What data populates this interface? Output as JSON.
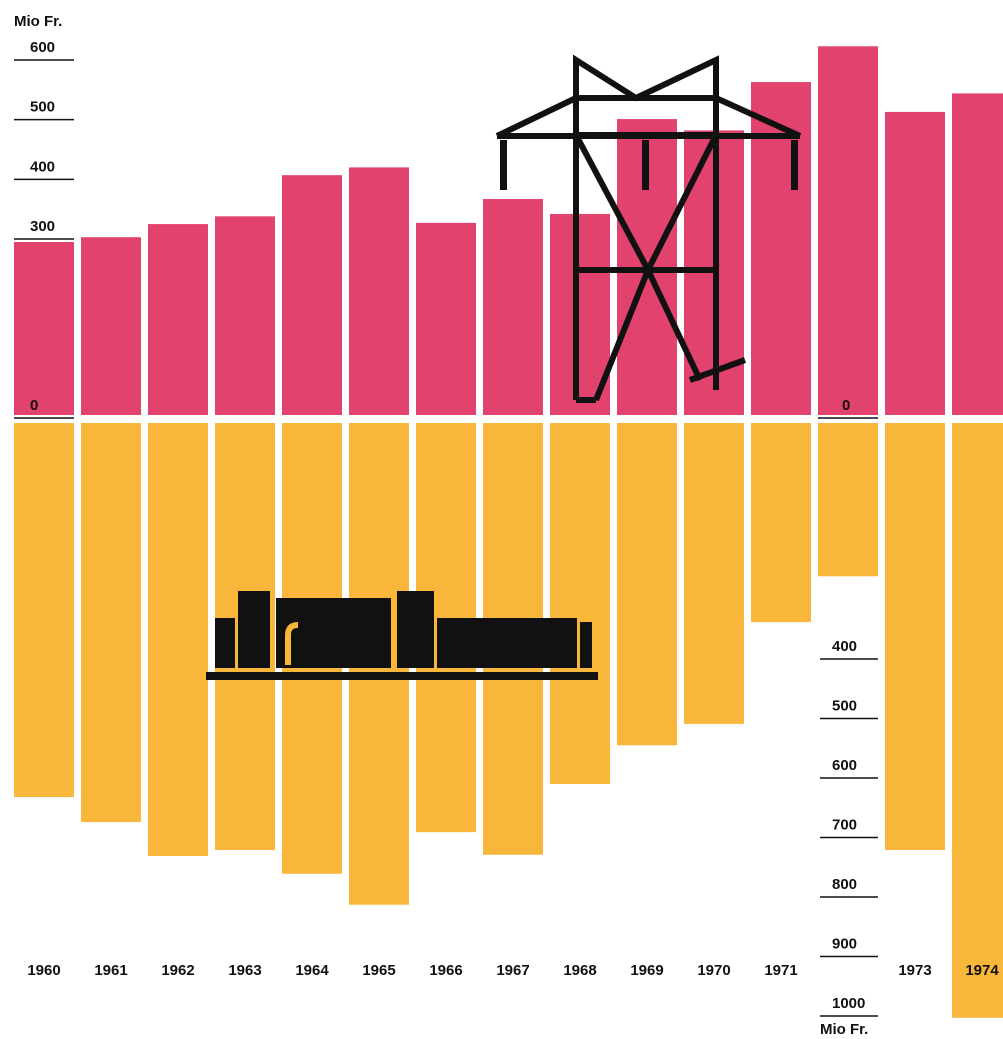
{
  "chart_data": {
    "type": "bar",
    "y_label": "Mio Fr.",
    "y2_label": "Mio Fr.",
    "categories": [
      "1960",
      "1961",
      "1962",
      "1963",
      "1964",
      "1965",
      "1966",
      "1967",
      "1968",
      "1969",
      "1970",
      "1971",
      null,
      "1973",
      "1974"
    ],
    "series": [
      {
        "color": "#e2426e",
        "values": [
          295,
          303,
          325,
          338,
          407,
          420,
          327,
          367,
          342,
          501,
          482,
          563,
          623,
          513,
          544
        ]
      },
      {
        "color": "#f8b63a",
        "axis": "y2",
        "values": [
          632,
          674,
          731,
          721,
          761,
          813,
          691,
          729,
          610,
          545,
          509,
          338,
          261,
          721,
          1003
        ]
      }
    ],
    "ylim": [
      0,
      600
    ],
    "yticks": [
      0,
      300,
      400,
      500,
      600
    ],
    "y2lim": [
      0,
      1000
    ],
    "y2ticks": [
      400,
      500,
      600,
      700,
      800,
      900,
      1000
    ]
  }
}
